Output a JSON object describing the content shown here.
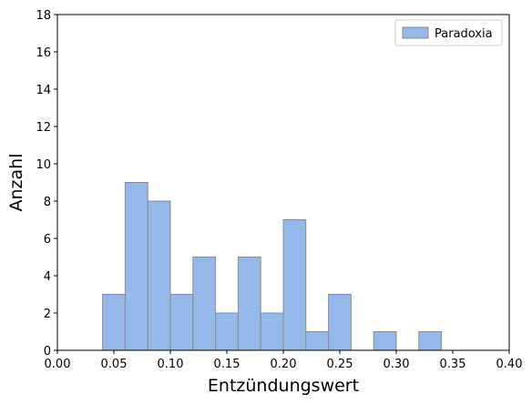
{
  "chart_data": {
    "type": "bar",
    "title": "",
    "xlabel": "Entzündungswert",
    "ylabel": "Anzahl",
    "xlim": [
      0.0,
      0.4
    ],
    "ylim": [
      0,
      18
    ],
    "xticks": [
      "0.00",
      "0.05",
      "0.10",
      "0.15",
      "0.20",
      "0.25",
      "0.30",
      "0.35",
      "0.40"
    ],
    "yticks": [
      "0",
      "2",
      "4",
      "6",
      "8",
      "10",
      "12",
      "14",
      "16",
      "18"
    ],
    "bin_edges": [
      0.04,
      0.06,
      0.08,
      0.1,
      0.12,
      0.14,
      0.16,
      0.18,
      0.2,
      0.22,
      0.24,
      0.26,
      0.28,
      0.3,
      0.32,
      0.34
    ],
    "series": [
      {
        "name": "Paradoxia",
        "values": [
          3,
          9,
          8,
          3,
          5,
          2,
          5,
          2,
          7,
          1,
          3,
          0,
          1,
          0,
          1
        ]
      }
    ],
    "bar_color": "#95b8ea",
    "edge_color": "#8c8c8c",
    "grid": false,
    "legend_position": "top-right"
  }
}
